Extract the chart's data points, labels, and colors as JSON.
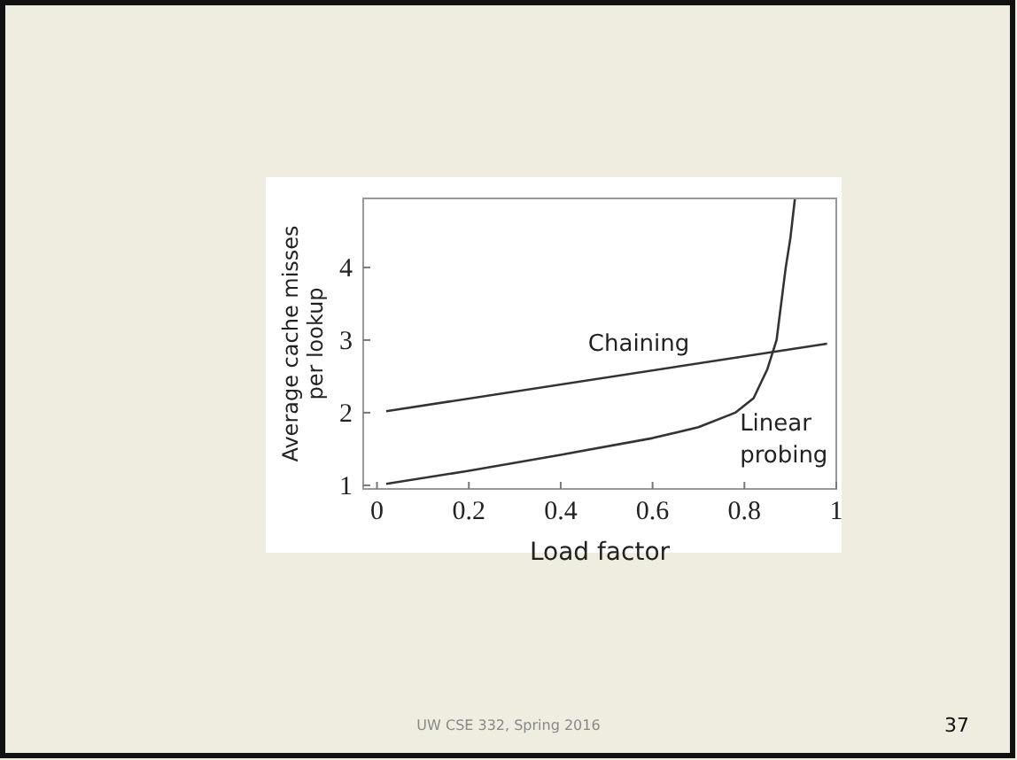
{
  "chart_data": {
    "type": "line",
    "xlabel": "Load factor",
    "ylabel": "Average cache misses per lookup",
    "xlim": [
      -0.03,
      1.0
    ],
    "ylim": [
      0.95,
      4.95
    ],
    "xticks": [
      0,
      0.2,
      0.4,
      0.6,
      0.8,
      1
    ],
    "yticks": [
      1,
      2,
      3,
      4
    ],
    "grid": false,
    "marker": "none",
    "line_style": "solid",
    "series": [
      {
        "name": "Chaining",
        "color": "#333333",
        "x": [
          0.02,
          0.98
        ],
        "values": [
          2.02,
          2.95
        ]
      },
      {
        "name": "Linear probing",
        "color": "#333333",
        "x": [
          0.02,
          0.2,
          0.4,
          0.6,
          0.7,
          0.78,
          0.82,
          0.85,
          0.87,
          0.88,
          0.89,
          0.9,
          0.91
        ],
        "values": [
          1.02,
          1.2,
          1.42,
          1.65,
          1.8,
          2.0,
          2.2,
          2.6,
          3.0,
          3.5,
          4.0,
          4.4,
          4.95
        ]
      }
    ],
    "annotations": [
      "UW CSE 332, Spring 2016",
      "37"
    ]
  }
}
